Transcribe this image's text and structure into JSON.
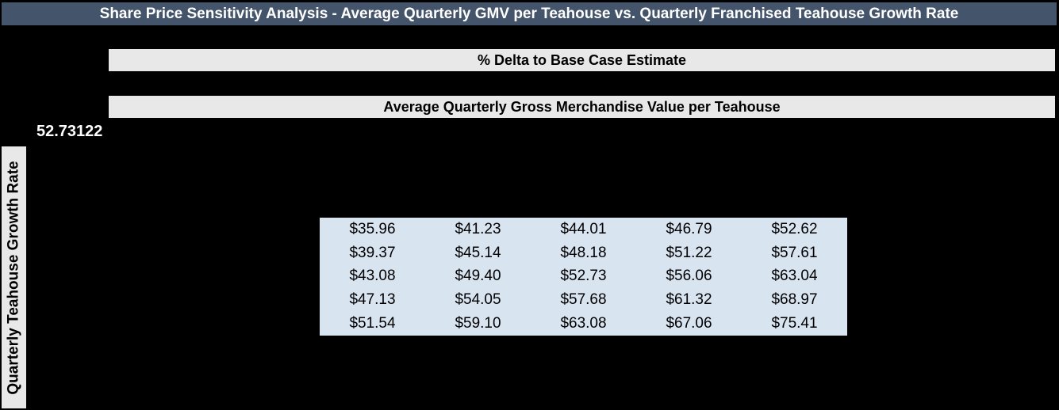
{
  "title_bar": {
    "text": "Share Price Sensitivity Analysis - Average Quarterly GMV per Teahouse vs. Quarterly Franchised Teahouse Growth Rate"
  },
  "headers": {
    "delta_header": "% Delta to Base Case Estimate",
    "gmv_header": "Average Quarterly Gross Merchandise Value per Teahouse"
  },
  "left_axis": {
    "base_case_value": "52.73122",
    "row_axis_label": "Quarterly Teahouse Growth Rate"
  },
  "colors": {
    "background": "#000000",
    "title_bar_bg": "#44546A",
    "title_text": "#FFFFFF",
    "header_bg": "#E8E8E8",
    "header_text": "#000000",
    "table_bg": "#D9E4F1",
    "table_text": "#000000",
    "base_value_text": "#FFFFFF"
  },
  "chart_data": {
    "type": "table",
    "title": "Share Price Sensitivity Analysis - Average Quarterly GMV per Teahouse vs. Quarterly Franchised Teahouse Growth Rate",
    "value_description": "% Delta to Base Case Estimate",
    "column_axis_label": "Average Quarterly Gross Merchandise Value per Teahouse",
    "row_axis_label": "Quarterly Teahouse Growth Rate",
    "base_case_value": "52.73122",
    "n_rows": 5,
    "n_cols": 5,
    "rows": [
      [
        "$35.96",
        "$41.23",
        "$44.01",
        "$46.79",
        "$52.62"
      ],
      [
        "$39.37",
        "$45.14",
        "$48.18",
        "$51.22",
        "$57.61"
      ],
      [
        "$43.08",
        "$49.40",
        "$52.73",
        "$56.06",
        "$63.04"
      ],
      [
        "$47.13",
        "$54.05",
        "$57.68",
        "$61.32",
        "$68.97"
      ],
      [
        "$51.54",
        "$59.10",
        "$63.08",
        "$67.06",
        "$75.41"
      ]
    ]
  }
}
